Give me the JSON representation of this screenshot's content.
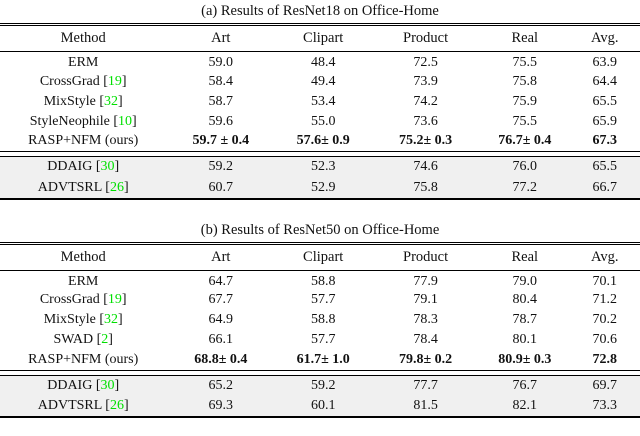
{
  "colors": {
    "citation_green": "#00e000",
    "shaded_row_bg": "#f0f0f0",
    "rule_color": "#000000",
    "text_color": "#111111"
  },
  "tables": [
    {
      "caption": "(a) Results of ResNet18 on Office-Home",
      "columns": [
        "Method",
        "Art",
        "Clipart",
        "Product",
        "Real",
        "Avg."
      ],
      "rows": [
        {
          "method": "ERM",
          "cite": null,
          "bold": false,
          "values": [
            "59.0",
            "48.4",
            "72.5",
            "75.5",
            "63.9"
          ]
        },
        {
          "method": "CrossGrad",
          "cite": "19",
          "bold": false,
          "values": [
            "58.4",
            "49.4",
            "73.9",
            "75.8",
            "64.4"
          ]
        },
        {
          "method": "MixStyle",
          "cite": "32",
          "bold": false,
          "values": [
            "58.7",
            "53.4",
            "74.2",
            "75.9",
            "65.5"
          ]
        },
        {
          "method": "StyleNeophile",
          "cite": "10",
          "bold": false,
          "values": [
            "59.6",
            "55.0",
            "73.6",
            "75.5",
            "65.9"
          ]
        },
        {
          "method": "RASP+NFM (ours)",
          "cite": null,
          "bold": true,
          "values": [
            "59.7 ± 0.4",
            "57.6± 0.9",
            "75.2± 0.3",
            "76.7± 0.4",
            "67.3"
          ]
        }
      ],
      "shaded_rows": [
        {
          "method": "DDAIG",
          "cite": "30",
          "bold": false,
          "values": [
            "59.2",
            "52.3",
            "74.6",
            "76.0",
            "65.5"
          ]
        },
        {
          "method": "ADVTSRL",
          "cite": "26",
          "bold": false,
          "values": [
            "60.7",
            "52.9",
            "75.8",
            "77.2",
            "66.7"
          ]
        }
      ]
    },
    {
      "caption": "(b) Results of ResNet50 on Office-Home",
      "columns": [
        "Method",
        "Art",
        "Clipart",
        "Product",
        "Real",
        "Avg."
      ],
      "rows": [
        {
          "method": "ERM",
          "cite": null,
          "bold": false,
          "values": [
            "64.7",
            "58.8",
            "77.9",
            "79.0",
            "70.1"
          ]
        },
        {
          "method": "CrossGrad",
          "cite": "19",
          "bold": false,
          "values": [
            "67.7",
            "57.7",
            "79.1",
            "80.4",
            "71.2"
          ]
        },
        {
          "method": "MixStyle",
          "cite": "32",
          "bold": false,
          "values": [
            "64.9",
            "58.8",
            "78.3",
            "78.7",
            "70.2"
          ]
        },
        {
          "method": "SWAD",
          "cite": "2",
          "bold": false,
          "values": [
            "66.1",
            "57.7",
            "78.4",
            "80.1",
            "70.6"
          ]
        },
        {
          "method": "RASP+NFM (ours)",
          "cite": null,
          "bold": true,
          "values": [
            "68.8± 0.4",
            "61.7± 1.0",
            "79.8± 0.2",
            "80.9± 0.3",
            "72.8"
          ]
        }
      ],
      "shaded_rows": [
        {
          "method": "DDAIG",
          "cite": "30",
          "bold": false,
          "values": [
            "65.2",
            "59.2",
            "77.7",
            "76.7",
            "69.7"
          ]
        },
        {
          "method": "ADVTSRL",
          "cite": "26",
          "bold": false,
          "values": [
            "69.3",
            "60.1",
            "81.5",
            "82.1",
            "73.3"
          ]
        }
      ]
    }
  ]
}
